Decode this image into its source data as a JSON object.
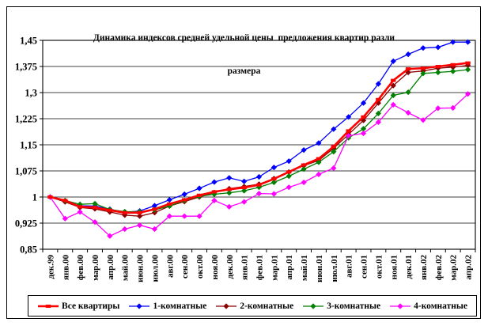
{
  "title": {
    "line1": "Динамика индексов средней удельной цены  предложения квартир разли",
    "line2": "размера"
  },
  "chart_data": {
    "type": "line",
    "title": "Динамика индексов средней удельной цены предложения квартир разли размера",
    "grid": true,
    "legend_position": "bottom",
    "y_axis": {
      "min": 0.85,
      "max": 1.45,
      "step": 0.075,
      "ticks": [
        {
          "v": 1.45,
          "label": "1,45"
        },
        {
          "v": 1.375,
          "label": "1,375"
        },
        {
          "v": 1.3,
          "label": "1,3"
        },
        {
          "v": 1.225,
          "label": "1,225"
        },
        {
          "v": 1.15,
          "label": "1,15"
        },
        {
          "v": 1.075,
          "label": "1,075"
        },
        {
          "v": 1.0,
          "label": "1"
        },
        {
          "v": 0.925,
          "label": "0,925"
        },
        {
          "v": 0.85,
          "label": "0,85"
        }
      ]
    },
    "categories": [
      "дек.99",
      "янв.00",
      "фев.00",
      "мар.00",
      "апр.00",
      "май.00",
      "июн.00",
      "июл.00",
      "авг.00",
      "сен.00",
      "окт.00",
      "ноя.00",
      "дек.00",
      "янв.01",
      "фев.01",
      "мар.01",
      "апр.01",
      "май.01",
      "июн.01",
      "июл.01",
      "авг.01",
      "сен.01",
      "окт.01",
      "ноя.01",
      "дек.01",
      "янв.02",
      "фев.02",
      "мар.02",
      "апр.02"
    ],
    "series": [
      {
        "name": "Все квартиры",
        "color": "#ff0000",
        "marker": "dash",
        "line_width": 2.6,
        "values": [
          1.0,
          0.99,
          0.972,
          0.97,
          0.962,
          0.955,
          0.955,
          0.965,
          0.98,
          0.992,
          1.005,
          1.015,
          1.022,
          1.027,
          1.035,
          1.052,
          1.072,
          1.092,
          1.11,
          1.145,
          1.19,
          1.23,
          1.28,
          1.335,
          1.368,
          1.37,
          1.375,
          1.38,
          1.385
        ]
      },
      {
        "name": "1-комнатные",
        "color": "#0000ff",
        "marker": "diamond",
        "line_width": 1.3,
        "values": [
          1.0,
          0.988,
          0.975,
          0.974,
          0.965,
          0.956,
          0.96,
          0.975,
          0.992,
          1.008,
          1.025,
          1.043,
          1.055,
          1.045,
          1.058,
          1.085,
          1.103,
          1.135,
          1.155,
          1.195,
          1.23,
          1.27,
          1.325,
          1.39,
          1.41,
          1.428,
          1.43,
          1.445,
          1.445
        ]
      },
      {
        "name": "2-комнатные",
        "color": "#8b0000",
        "marker": "diamond",
        "line_width": 1.3,
        "values": [
          1.0,
          0.986,
          0.97,
          0.966,
          0.957,
          0.948,
          0.945,
          0.955,
          0.974,
          0.987,
          1.0,
          1.013,
          1.024,
          1.03,
          1.037,
          1.053,
          1.072,
          1.09,
          1.105,
          1.14,
          1.18,
          1.22,
          1.27,
          1.32,
          1.358,
          1.362,
          1.37,
          1.373,
          1.378
        ]
      },
      {
        "name": "3-комнатные",
        "color": "#008000",
        "marker": "diamond",
        "line_width": 1.3,
        "values": [
          1.0,
          0.99,
          0.979,
          0.981,
          0.964,
          0.958,
          0.958,
          0.963,
          0.974,
          0.99,
          1.002,
          1.008,
          1.012,
          1.018,
          1.028,
          1.042,
          1.06,
          1.08,
          1.1,
          1.13,
          1.17,
          1.196,
          1.24,
          1.292,
          1.301,
          1.355,
          1.358,
          1.361,
          1.366
        ]
      },
      {
        "name": "4-комнатные",
        "color": "#ff00ff",
        "marker": "diamond",
        "line_width": 1.3,
        "values": [
          1.0,
          0.938,
          0.957,
          0.928,
          0.888,
          0.908,
          0.919,
          0.908,
          0.945,
          0.945,
          0.945,
          0.99,
          0.972,
          0.986,
          1.01,
          1.009,
          1.028,
          1.042,
          1.065,
          1.083,
          1.176,
          1.183,
          1.215,
          1.265,
          1.242,
          1.221,
          1.255,
          1.256,
          1.296
        ]
      }
    ]
  }
}
